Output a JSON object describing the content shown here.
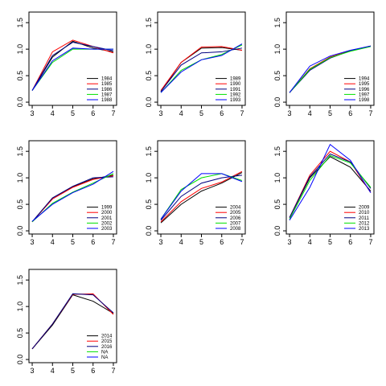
{
  "chart_data": [
    {
      "type": "line",
      "x": [
        3,
        4,
        5,
        6,
        7
      ],
      "xlim": [
        2.84,
        7.16
      ],
      "ylim": [
        -0.06,
        1.7
      ],
      "xticks": [
        3,
        4,
        5,
        6,
        7
      ],
      "yticks": [
        {
          "value": 0,
          "label": "0.0"
        },
        {
          "value": 0.5,
          "label": "0.5"
        },
        {
          "value": 1,
          "label": "1.0"
        },
        {
          "value": 1.5,
          "label": "1.5"
        }
      ],
      "legend": "bottomright",
      "series": [
        {
          "name": "1984",
          "color": "#000000",
          "values": [
            0.22,
            0.85,
            1.15,
            1.02,
            0.95
          ]
        },
        {
          "name": "1985",
          "color": "#ff0000",
          "values": [
            0.22,
            0.95,
            1.17,
            1.05,
            0.93
          ]
        },
        {
          "name": "1986",
          "color": "#000080",
          "values": [
            0.22,
            0.88,
            1.13,
            1.05,
            0.97
          ]
        },
        {
          "name": "1987",
          "color": "#00e000",
          "values": [
            0.22,
            0.75,
            1.0,
            1.0,
            1.0
          ]
        },
        {
          "name": "1988",
          "color": "#0000ff",
          "values": [
            0.22,
            0.78,
            1.02,
            1.0,
            1.0
          ]
        }
      ]
    },
    {
      "type": "line",
      "x": [
        3,
        4,
        5,
        6,
        7
      ],
      "xlim": [
        2.84,
        7.16
      ],
      "ylim": [
        -0.06,
        1.7
      ],
      "xticks": [
        3,
        4,
        5,
        6,
        7
      ],
      "yticks": [
        {
          "value": 0,
          "label": "0.0"
        },
        {
          "value": 0.5,
          "label": "0.5"
        },
        {
          "value": 1,
          "label": "1.0"
        },
        {
          "value": 1.5,
          "label": "1.5"
        }
      ],
      "legend": "bottomright",
      "series": [
        {
          "name": "1989",
          "color": "#000000",
          "values": [
            0.2,
            0.75,
            1.02,
            1.03,
            0.98
          ]
        },
        {
          "name": "1990",
          "color": "#ff0000",
          "values": [
            0.22,
            0.75,
            1.04,
            1.05,
            0.98
          ]
        },
        {
          "name": "1991",
          "color": "#000080",
          "values": [
            0.2,
            0.7,
            0.93,
            0.95,
            1.02
          ]
        },
        {
          "name": "1992",
          "color": "#00e000",
          "values": [
            0.18,
            0.6,
            0.8,
            0.9,
            1.08
          ]
        },
        {
          "name": "1993",
          "color": "#0000ff",
          "values": [
            0.18,
            0.57,
            0.8,
            0.88,
            1.1
          ]
        }
      ]
    },
    {
      "type": "line",
      "x": [
        3,
        4,
        5,
        6,
        7
      ],
      "xlim": [
        2.84,
        7.16
      ],
      "ylim": [
        -0.06,
        1.7
      ],
      "xticks": [
        3,
        4,
        5,
        6,
        7
      ],
      "yticks": [
        {
          "value": 0,
          "label": "0.0"
        },
        {
          "value": 0.5,
          "label": "0.5"
        },
        {
          "value": 1,
          "label": "1.0"
        },
        {
          "value": 1.5,
          "label": "1.5"
        }
      ],
      "legend": "bottomright",
      "series": [
        {
          "name": "1994",
          "color": "#000000",
          "values": [
            0.18,
            0.62,
            0.85,
            0.97,
            1.06
          ]
        },
        {
          "name": "1995",
          "color": "#ff0000",
          "values": [
            0.18,
            0.63,
            0.85,
            0.97,
            1.06
          ]
        },
        {
          "name": "1996",
          "color": "#000080",
          "values": [
            0.18,
            0.6,
            0.83,
            0.97,
            1.06
          ]
        },
        {
          "name": "1997",
          "color": "#00e000",
          "values": [
            0.18,
            0.62,
            0.84,
            0.96,
            1.05
          ]
        },
        {
          "name": "1998",
          "color": "#0000ff",
          "values": [
            0.18,
            0.68,
            0.87,
            0.98,
            1.06
          ]
        }
      ]
    },
    {
      "type": "line",
      "x": [
        3,
        4,
        5,
        6,
        7
      ],
      "xlim": [
        2.84,
        7.16
      ],
      "ylim": [
        -0.06,
        1.7
      ],
      "xticks": [
        3,
        4,
        5,
        6,
        7
      ],
      "yticks": [
        {
          "value": 0,
          "label": "0.0"
        },
        {
          "value": 0.5,
          "label": "0.5"
        },
        {
          "value": 1,
          "label": "1.0"
        },
        {
          "value": 1.5,
          "label": "1.5"
        }
      ],
      "legend": "bottomright",
      "series": [
        {
          "name": "1999",
          "color": "#000000",
          "values": [
            0.17,
            0.62,
            0.83,
            0.98,
            1.05
          ]
        },
        {
          "name": "2000",
          "color": "#ff0000",
          "values": [
            0.17,
            0.6,
            0.82,
            0.97,
            1.04
          ]
        },
        {
          "name": "2001",
          "color": "#000080",
          "values": [
            0.17,
            0.62,
            0.84,
            1.0,
            1.02
          ]
        },
        {
          "name": "2002",
          "color": "#00e000",
          "values": [
            0.17,
            0.52,
            0.73,
            0.9,
            1.08
          ]
        },
        {
          "name": "2003",
          "color": "#0000ff",
          "values": [
            0.18,
            0.5,
            0.72,
            0.88,
            1.12
          ]
        }
      ]
    },
    {
      "type": "line",
      "x": [
        3,
        4,
        5,
        6,
        7
      ],
      "xlim": [
        2.84,
        7.16
      ],
      "ylim": [
        -0.06,
        1.7
      ],
      "xticks": [
        3,
        4,
        5,
        6,
        7
      ],
      "yticks": [
        {
          "value": 0,
          "label": "0.0"
        },
        {
          "value": 0.5,
          "label": "0.5"
        },
        {
          "value": 1,
          "label": "1.0"
        },
        {
          "value": 1.5,
          "label": "1.5"
        }
      ],
      "legend": "bottomright",
      "series": [
        {
          "name": "2004",
          "color": "#000000",
          "values": [
            0.15,
            0.5,
            0.75,
            0.9,
            1.1
          ]
        },
        {
          "name": "2005",
          "color": "#ff0000",
          "values": [
            0.17,
            0.55,
            0.8,
            0.92,
            1.12
          ]
        },
        {
          "name": "2006",
          "color": "#000080",
          "values": [
            0.2,
            0.65,
            0.9,
            1.0,
            1.05
          ]
        },
        {
          "name": "2007",
          "color": "#00e000",
          "values": [
            0.22,
            0.78,
            1.0,
            1.08,
            0.95
          ]
        },
        {
          "name": "2008",
          "color": "#0000ff",
          "values": [
            0.22,
            0.75,
            1.08,
            1.08,
            0.93
          ]
        }
      ]
    },
    {
      "type": "line",
      "x": [
        3,
        4,
        5,
        6,
        7
      ],
      "xlim": [
        2.84,
        7.16
      ],
      "ylim": [
        -0.06,
        1.7
      ],
      "xticks": [
        3,
        4,
        5,
        6,
        7
      ],
      "yticks": [
        {
          "value": 0,
          "label": "0.0"
        },
        {
          "value": 0.5,
          "label": "0.5"
        },
        {
          "value": 1,
          "label": "1.0"
        },
        {
          "value": 1.5,
          "label": "1.5"
        }
      ],
      "legend": "bottomright",
      "series": [
        {
          "name": "2009",
          "color": "#000000",
          "values": [
            0.25,
            1.0,
            1.4,
            1.2,
            0.75
          ]
        },
        {
          "name": "2010",
          "color": "#ff0000",
          "values": [
            0.25,
            1.05,
            1.5,
            1.3,
            0.72
          ]
        },
        {
          "name": "2011",
          "color": "#000080",
          "values": [
            0.25,
            1.02,
            1.45,
            1.3,
            0.8
          ]
        },
        {
          "name": "2012",
          "color": "#00e000",
          "values": [
            0.22,
            0.95,
            1.42,
            1.28,
            0.82
          ]
        },
        {
          "name": "2013",
          "color": "#0000ff",
          "values": [
            0.2,
            0.82,
            1.63,
            1.33,
            0.72
          ]
        }
      ]
    },
    {
      "type": "line",
      "x": [
        3,
        4,
        5,
        6,
        7
      ],
      "xlim": [
        2.84,
        7.16
      ],
      "ylim": [
        -0.06,
        1.7
      ],
      "xticks": [
        3,
        4,
        5,
        6,
        7
      ],
      "yticks": [
        {
          "value": 0,
          "label": "0.0"
        },
        {
          "value": 0.5,
          "label": "0.5"
        },
        {
          "value": 1,
          "label": "1.0"
        },
        {
          "value": 1.5,
          "label": "1.5"
        }
      ],
      "legend": "bottomright",
      "series": [
        {
          "name": "2014",
          "color": "#000000",
          "values": [
            0.2,
            0.65,
            1.22,
            1.1,
            0.87
          ]
        },
        {
          "name": "2015",
          "color": "#ff0000",
          "values": [
            0.2,
            0.67,
            1.23,
            1.24,
            0.85
          ]
        },
        {
          "name": "2016",
          "color": "#000080",
          "values": [
            0.2,
            0.67,
            1.24,
            1.22,
            0.88
          ]
        },
        {
          "name": "NA",
          "color": "#00e000",
          "values": [
            null,
            null,
            null,
            null,
            null
          ]
        },
        {
          "name": "NA",
          "color": "#0000ff",
          "values": [
            null,
            null,
            null,
            null,
            null
          ]
        }
      ]
    }
  ]
}
